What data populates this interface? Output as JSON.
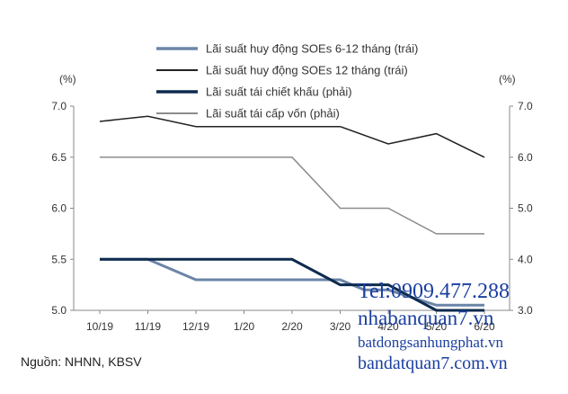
{
  "chart_data": {
    "type": "line",
    "categories": [
      "10/19",
      "11/19",
      "12/19",
      "1/20",
      "2/20",
      "3/20",
      "4/20",
      "5/20",
      "6/20"
    ],
    "left_axis": {
      "unit_label": "(%)",
      "ylim": [
        5.0,
        7.0
      ],
      "ticks": [
        "5.0",
        "5.5",
        "6.0",
        "6.5",
        "7.0"
      ]
    },
    "right_axis": {
      "unit_label": "(%)",
      "ylim": [
        3.0,
        7.0
      ],
      "ticks": [
        "3.0",
        "4.0",
        "5.0",
        "6.0",
        "7.0"
      ]
    },
    "series": [
      {
        "name": "Lãi suất huy động SOEs 6-12 tháng (trái)",
        "axis": "left",
        "color": "#6b85a8",
        "width": 3,
        "x": [
          0,
          1,
          2,
          3,
          4,
          5,
          5.5,
          6,
          7,
          8
        ],
        "values": [
          5.5,
          5.5,
          5.3,
          5.3,
          5.3,
          5.3,
          5.2,
          5.2,
          5.05,
          5.05
        ]
      },
      {
        "name": "Lãi suất huy động SOEs 12 tháng (trái)",
        "axis": "left",
        "color": "#222222",
        "width": 1.5,
        "x": [
          0,
          1,
          2,
          3,
          4,
          5,
          6,
          7,
          8
        ],
        "values": [
          6.85,
          6.9,
          6.8,
          6.8,
          6.8,
          6.8,
          6.63,
          6.73,
          6.5
        ]
      },
      {
        "name": "Lãi suất tái chiết khấu (phải)",
        "axis": "right",
        "color": "#0d2b4e",
        "width": 3,
        "x": [
          0,
          1,
          2,
          3,
          4,
          5,
          6,
          7,
          8
        ],
        "values": [
          4.0,
          4.0,
          4.0,
          4.0,
          4.0,
          3.5,
          3.5,
          3.0,
          3.0
        ]
      },
      {
        "name": "Lãi suất tái cấp vốn (phải)",
        "axis": "right",
        "color": "#8c8c8c",
        "width": 1.5,
        "x": [
          0,
          1,
          2,
          3,
          4,
          5,
          6,
          7,
          8
        ],
        "values": [
          6.0,
          6.0,
          6.0,
          6.0,
          6.0,
          5.0,
          5.0,
          4.5,
          4.5
        ]
      }
    ],
    "grid": false,
    "legend_position": "top-center"
  },
  "source": "Nguồn:  NHNN, KBSV",
  "watermark": {
    "phone": "Tel:0909.477.288",
    "site1": "nhabanquan7.vn",
    "site2": "batdongsanhungphat.vn",
    "site3": "bandatquan7.com.vn"
  }
}
